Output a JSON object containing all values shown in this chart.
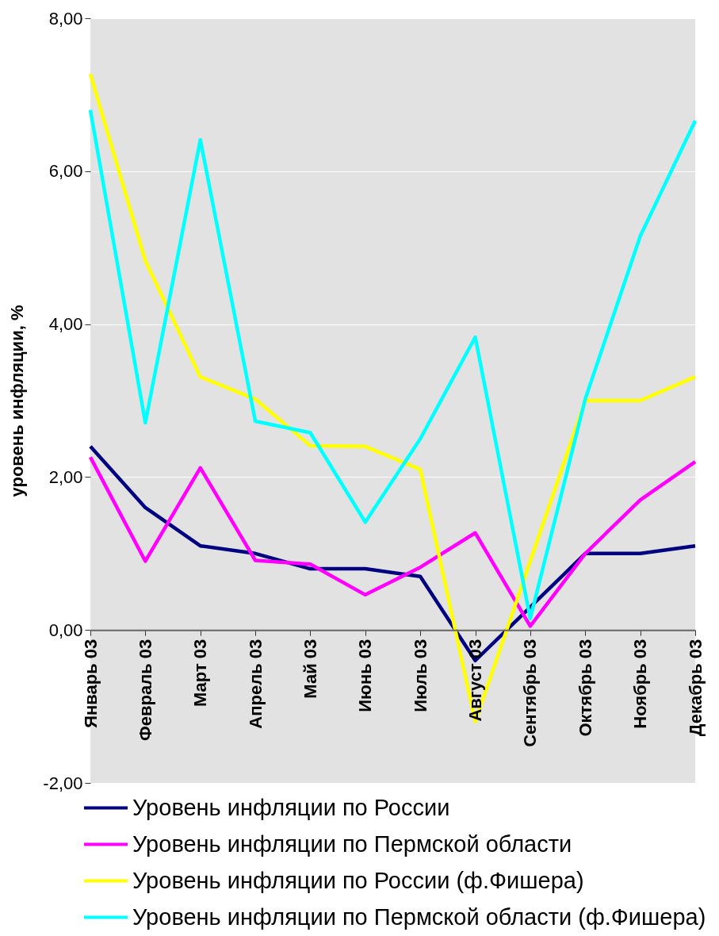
{
  "chart_data": {
    "type": "line",
    "ylabel": "уровень инфляции, %",
    "categories": [
      "Январь 03",
      "Февраль 03",
      "Март 03",
      "Апрель 03",
      "Май 03",
      "Июнь 03",
      "Июль 03",
      "Август 03",
      "Сентябрь 03",
      "Октябрь 03",
      "Ноябрь 03",
      "Декабрь 03"
    ],
    "series": [
      {
        "name": "Уровень инфляции по России",
        "color": "#000080",
        "values": [
          2.4,
          1.6,
          1.1,
          1.0,
          0.8,
          0.8,
          0.7,
          -0.4,
          0.3,
          1.0,
          1.0,
          1.1
        ]
      },
      {
        "name": "Уровень инфляции по Пермской области",
        "color": "#ff00ff",
        "values": [
          2.26,
          0.9,
          2.12,
          0.91,
          0.86,
          0.46,
          0.82,
          1.27,
          0.05,
          1.0,
          1.7,
          2.2
        ]
      },
      {
        "name": "Уровень инфляции по России (ф.Фишера)",
        "color": "#ffff00",
        "values": [
          7.27,
          4.83,
          3.31,
          3.02,
          2.41,
          2.4,
          2.1,
          -1.2,
          0.9,
          3.0,
          3.0,
          3.31
        ]
      },
      {
        "name": "Уровень инфляции по Пермской области (ф.Фишера)",
        "color": "#00ffff",
        "values": [
          6.8,
          2.71,
          6.41,
          2.73,
          2.58,
          1.41,
          2.5,
          3.83,
          0.15,
          3.02,
          5.15,
          6.66
        ]
      }
    ],
    "ylim": [
      -2,
      8
    ],
    "yticks": [
      {
        "value": -2,
        "label": "-2,00"
      },
      {
        "value": 0,
        "label": "0,00"
      },
      {
        "value": 2,
        "label": "2,00"
      },
      {
        "value": 4,
        "label": "4,00"
      },
      {
        "value": 6,
        "label": "6,00"
      },
      {
        "value": 8,
        "label": "8,00"
      }
    ],
    "grid": "y",
    "legend": "bottom",
    "line_style": "solid"
  }
}
